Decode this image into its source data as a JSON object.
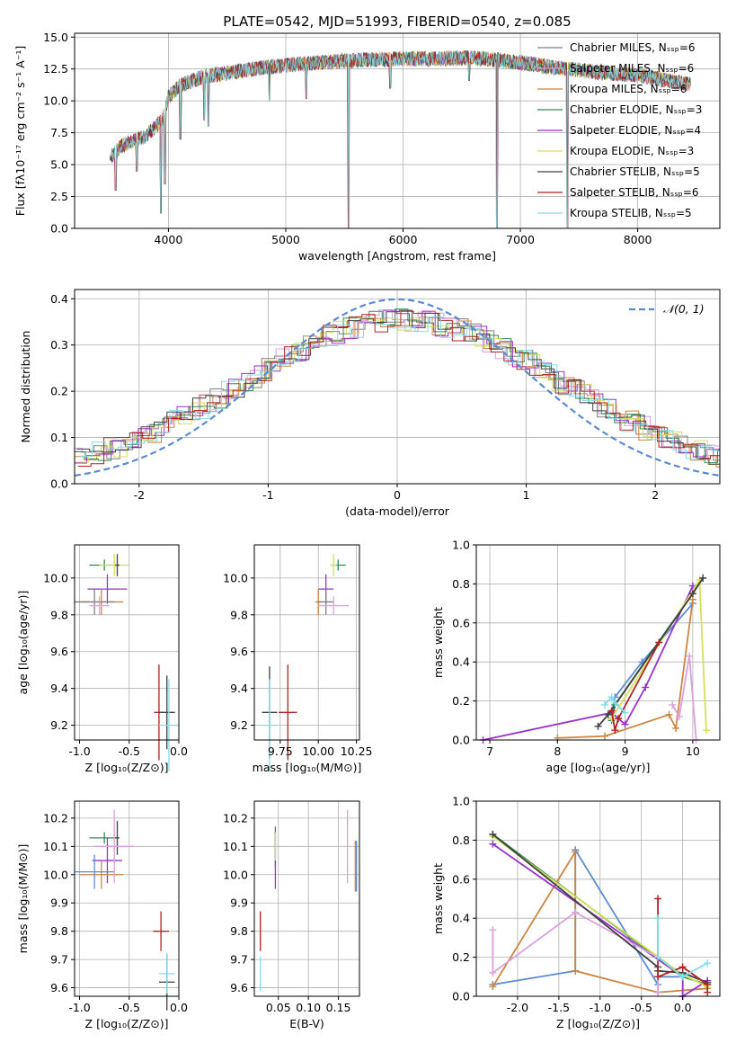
{
  "figure_title": "PLATE=0542, MJD=51993, FIBERID=0540, z=0.085",
  "chart_data": [
    {
      "id": "spectrum",
      "type": "line",
      "title": "PLATE=0542, MJD=51993, FIBERID=0540, z=0.085",
      "xlabel": "wavelength [Angstrom, rest frame]",
      "ylabel": "Flux [fλ10⁻¹⁷ erg cm⁻² s⁻¹ A⁻¹]",
      "xlim": [
        3200,
        8700
      ],
      "ylim": [
        0,
        15.3
      ],
      "xticks": [
        4000,
        5000,
        6000,
        7000,
        8000
      ],
      "yticks": [
        0.0,
        2.5,
        5.0,
        7.5,
        10.0,
        12.5,
        15.0
      ],
      "legend_position": "top-right",
      "series": [
        {
          "name": "Chabrier MILES, N_SSP=6",
          "color": "#808080"
        },
        {
          "name": "Salpeter MILES, N_SSP=6",
          "color": "#dda0dd"
        },
        {
          "name": "Kroupa MILES, N_SSP=6",
          "color": "#cd853f"
        },
        {
          "name": "Chabrier ELODIE, N_SSP=3",
          "color": "#2e8b57"
        },
        {
          "name": "Salpeter ELODIE, N_SSP=4",
          "color": "#9932cc"
        },
        {
          "name": "Kroupa ELODIE, N_SSP=3",
          "color": "#d4e157"
        },
        {
          "name": "Chabrier STELIB, N_SSP=5",
          "color": "#404040"
        },
        {
          "name": "Salpeter STELIB, N_SSP=6",
          "color": "#b22222"
        },
        {
          "name": "Kroupa STELIB, N_SSP=5",
          "color": "#80deea"
        }
      ],
      "continuum": {
        "x": [
          3500,
          3600,
          3800,
          3950,
          4000,
          4100,
          4300,
          4500,
          4800,
          5000,
          5300,
          5600,
          6000,
          6300,
          6600,
          7000,
          7300,
          7600,
          8000,
          8500
        ],
        "y": [
          5.5,
          6.5,
          7.2,
          8.5,
          10.3,
          11.2,
          11.9,
          12.2,
          12.6,
          12.8,
          13.0,
          13.2,
          13.3,
          13.3,
          13.4,
          13.0,
          12.6,
          12.3,
          12.0,
          11.2
        ]
      },
      "absorption_features": [
        {
          "x": 3550,
          "y": 3.0
        },
        {
          "x": 3730,
          "y": 4.5
        },
        {
          "x": 3935,
          "y": 1.2
        },
        {
          "x": 3970,
          "y": 3.5
        },
        {
          "x": 4102,
          "y": 7.0
        },
        {
          "x": 4305,
          "y": 8.5
        },
        {
          "x": 4340,
          "y": 8.0
        },
        {
          "x": 4861,
          "y": 10.0
        },
        {
          "x": 5175,
          "y": 10.2
        },
        {
          "x": 5535,
          "y": 0.0
        },
        {
          "x": 5890,
          "y": 11.0
        },
        {
          "x": 6563,
          "y": 11.6
        },
        {
          "x": 6800,
          "y": 0.0
        },
        {
          "x": 7400,
          "y": 0.0
        }
      ]
    },
    {
      "id": "residual-histogram",
      "type": "histogram",
      "xlabel": "(data-model)/error",
      "ylabel": "Normed distribution",
      "xlim": [
        -2.5,
        2.5
      ],
      "ylim": [
        0,
        0.42
      ],
      "xticks": [
        -2,
        -1,
        0,
        1,
        2
      ],
      "yticks": [
        0.0,
        0.1,
        0.2,
        0.3,
        0.4
      ],
      "legend_position": "top-right",
      "reference_curve": {
        "name": "N(0,1)",
        "label_text": "𝒩(0, 1)",
        "mean": 0,
        "sigma": 1,
        "color": "#5b8bd4"
      },
      "bin_width": 0.1,
      "series_colors": [
        "#808080",
        "#dda0dd",
        "#cd853f",
        "#2e8b57",
        "#9932cc",
        "#d4e157",
        "#404040",
        "#b22222",
        "#80deea"
      ]
    },
    {
      "id": "age-vs-Z",
      "type": "scatter",
      "xlabel": "Z [log₁₀(Z/Z⊙)]",
      "ylabel": "age  [log₁₀(age/yr)]",
      "xlim": [
        -1.05,
        0.0
      ],
      "ylim": [
        9.12,
        10.18
      ],
      "xticks": [
        -1.0,
        -0.5,
        0.0
      ],
      "yticks": [
        9.2,
        9.4,
        9.6,
        9.8,
        10.0
      ],
      "points": [
        {
          "x": -0.75,
          "y": 10.07,
          "xerr": 0.15,
          "yerr": 0.03,
          "color": "#2e8b57"
        },
        {
          "x": -0.65,
          "y": 10.07,
          "xerr": 0.15,
          "yerr": 0.06,
          "color": "#d4e157"
        },
        {
          "x": -0.62,
          "y": 10.07,
          "xerr": 0.02,
          "yerr": 0.06,
          "color": "#404040"
        },
        {
          "x": -0.72,
          "y": 9.94,
          "xerr": 0.2,
          "yerr": 0.08,
          "color": "#9932cc"
        },
        {
          "x": -0.78,
          "y": 9.87,
          "xerr": 0.22,
          "yerr": 0.07,
          "color": "#cd853f"
        },
        {
          "x": -0.85,
          "y": 9.87,
          "xerr": 0.2,
          "yerr": 0.07,
          "color": "#808080"
        },
        {
          "x": -0.8,
          "y": 9.85,
          "xerr": 0.1,
          "yerr": 0.05,
          "color": "#dda0dd"
        },
        {
          "x": -0.2,
          "y": 9.27,
          "xerr": 0.05,
          "yerr": 0.26,
          "color": "#b22222"
        },
        {
          "x": -0.12,
          "y": 9.27,
          "xerr": 0.08,
          "yerr": 0.2,
          "color": "#404040"
        },
        {
          "x": -0.1,
          "y": 9.2,
          "xerr": 0.1,
          "yerr": 0.25,
          "color": "#80deea"
        }
      ]
    },
    {
      "id": "age-vs-mass",
      "type": "scatter",
      "xlabel": "mass [log₁₀(M/M⊙)]",
      "ylabel": "",
      "xlim": [
        9.58,
        10.27
      ],
      "ylim": [
        9.12,
        10.18
      ],
      "xticks": [
        9.75,
        10.0,
        10.25
      ],
      "yticks": [
        9.2,
        9.4,
        9.6,
        9.8,
        10.0
      ],
      "points": [
        {
          "x": 10.13,
          "y": 10.07,
          "xerr": 0.05,
          "yerr": 0.03,
          "color": "#2e8b57"
        },
        {
          "x": 10.1,
          "y": 10.07,
          "xerr": 0.02,
          "yerr": 0.06,
          "color": "#d4e157"
        },
        {
          "x": 10.05,
          "y": 9.94,
          "xerr": 0.05,
          "yerr": 0.08,
          "color": "#9932cc"
        },
        {
          "x": 10.0,
          "y": 9.87,
          "xerr": 0.02,
          "yerr": 0.07,
          "color": "#cd853f"
        },
        {
          "x": 10.05,
          "y": 9.87,
          "xerr": 0.05,
          "yerr": 0.07,
          "color": "#808080"
        },
        {
          "x": 10.1,
          "y": 9.85,
          "xerr": 0.1,
          "yerr": 0.05,
          "color": "#dda0dd"
        },
        {
          "x": 9.8,
          "y": 9.27,
          "xerr": 0.06,
          "yerr": 0.26,
          "color": "#b22222"
        },
        {
          "x": 9.68,
          "y": 9.27,
          "xerr": 0.05,
          "yerr": 0.25,
          "color": "#404040"
        },
        {
          "x": 9.68,
          "y": 9.2,
          "xerr": 0.05,
          "yerr": 0.25,
          "color": "#80deea"
        }
      ]
    },
    {
      "id": "massweight-vs-age",
      "type": "line",
      "xlabel": "age  [log₁₀(age/yr)]",
      "ylabel": "mass weight",
      "xlim": [
        6.8,
        10.4
      ],
      "ylim": [
        0,
        1.0
      ],
      "xticks": [
        7,
        8,
        9,
        10
      ],
      "yticks": [
        0.0,
        0.2,
        0.4,
        0.6,
        0.8,
        1.0
      ],
      "grid": true,
      "series": [
        {
          "color": "#5b8bd4",
          "x": [
            8.8,
            8.85,
            9.25,
            10.0
          ],
          "y": [
            0.13,
            0.22,
            0.4,
            0.7
          ]
        },
        {
          "color": "#cd853f",
          "x": [
            8.0,
            8.7,
            9.65,
            9.75,
            10.0
          ],
          "y": [
            0.01,
            0.02,
            0.13,
            0.06,
            0.72
          ]
        },
        {
          "color": "#2e8b57",
          "x": [
            8.8,
            8.85,
            10.15
          ],
          "y": [
            0.1,
            0.18,
            0.83
          ]
        },
        {
          "color": "#9932cc",
          "x": [
            6.9,
            8.8,
            9.0,
            9.3,
            10.0
          ],
          "y": [
            0.0,
            0.14,
            0.08,
            0.27,
            0.79
          ]
        },
        {
          "color": "#dda0dd",
          "x": [
            9.7,
            9.8,
            9.95,
            10.05
          ],
          "y": [
            0.18,
            0.12,
            0.43,
            0.0
          ]
        },
        {
          "color": "#d4e157",
          "x": [
            8.8,
            10.1,
            10.2
          ],
          "y": [
            0.11,
            0.82,
            0.05
          ]
        },
        {
          "color": "#404040",
          "x": [
            8.6,
            8.75,
            10.0,
            10.15
          ],
          "y": [
            0.07,
            0.13,
            0.75,
            0.83
          ]
        },
        {
          "color": "#b22222",
          "x": [
            8.8,
            8.85,
            8.9,
            9.5
          ],
          "y": [
            0.15,
            0.05,
            0.11,
            0.5
          ]
        },
        {
          "color": "#80deea",
          "x": [
            8.7,
            8.8,
            8.85,
            9.0
          ],
          "y": [
            0.18,
            0.22,
            0.19,
            0.14
          ]
        }
      ]
    },
    {
      "id": "mass-vs-Z",
      "type": "scatter",
      "xlabel": "Z [log₁₀(Z/Z⊙)]",
      "ylabel": "mass [log₁₀(M/M⊙)]",
      "xlim": [
        -1.05,
        0.0
      ],
      "ylim": [
        9.57,
        10.26
      ],
      "xticks": [
        -1.0,
        -0.5,
        0.0
      ],
      "yticks": [
        9.6,
        9.7,
        9.8,
        9.9,
        10.0,
        10.1,
        10.2
      ],
      "points": [
        {
          "x": -0.75,
          "y": 10.13,
          "xerr": 0.15,
          "yerr": 0.02,
          "color": "#2e8b57"
        },
        {
          "x": -0.65,
          "y": 10.1,
          "xerr": 0.15,
          "yerr": 0.06,
          "color": "#d4e157"
        },
        {
          "x": -0.62,
          "y": 10.13,
          "xerr": 0.02,
          "yerr": 0.06,
          "color": "#404040"
        },
        {
          "x": -0.72,
          "y": 10.05,
          "xerr": 0.15,
          "yerr": 0.08,
          "color": "#9932cc"
        },
        {
          "x": -0.78,
          "y": 10.0,
          "xerr": 0.22,
          "yerr": 0.05,
          "color": "#cd853f"
        },
        {
          "x": -0.85,
          "y": 10.01,
          "xerr": 0.2,
          "yerr": 0.06,
          "color": "#5b8bd4"
        },
        {
          "x": -0.65,
          "y": 10.1,
          "xerr": 0.2,
          "yerr": 0.13,
          "color": "#dda0dd"
        },
        {
          "x": -0.18,
          "y": 9.8,
          "xerr": 0.08,
          "yerr": 0.07,
          "color": "#b22222"
        },
        {
          "x": -0.12,
          "y": 9.62,
          "xerr": 0.08,
          "yerr": 0.1,
          "color": "#404040"
        },
        {
          "x": -0.12,
          "y": 9.65,
          "xerr": 0.08,
          "yerr": 0.07,
          "color": "#80deea"
        }
      ]
    },
    {
      "id": "mass-vs-ebv",
      "type": "scatter",
      "xlabel": "E(B-V)",
      "ylabel": "",
      "xlim": [
        0.01,
        0.185
      ],
      "ylim": [
        9.57,
        10.26
      ],
      "xticks": [
        0.05,
        0.1,
        0.15
      ],
      "xtick_labels": [
        "0.05",
        "0.10",
        "0.15"
      ],
      "yticks": [
        9.6,
        9.7,
        9.8,
        9.9,
        10.0,
        10.1,
        10.2
      ],
      "points": [
        {
          "x": 0.045,
          "y": 10.1,
          "yerr": 0.07,
          "color": "#2e8b57"
        },
        {
          "x": 0.045,
          "y": 10.05,
          "yerr": 0.1,
          "color": "#9932cc"
        },
        {
          "x": 0.045,
          "y": 10.1,
          "yerr": 0.05,
          "color": "#d4e157"
        },
        {
          "x": 0.165,
          "y": 10.1,
          "yerr": 0.13,
          "color": "#dda0dd"
        },
        {
          "x": 0.178,
          "y": 10.03,
          "yerr": 0.09,
          "color": "#cd853f"
        },
        {
          "x": 0.18,
          "y": 10.03,
          "yerr": 0.09,
          "color": "#5b8bd4"
        },
        {
          "x": 0.02,
          "y": 9.8,
          "yerr": 0.07,
          "color": "#b22222"
        },
        {
          "x": 0.02,
          "y": 9.65,
          "yerr": 0.06,
          "color": "#80deea"
        }
      ]
    },
    {
      "id": "massweight-vs-Z",
      "type": "line",
      "xlabel": "Z [log₁₀(Z/Z⊙)]",
      "ylabel": "mass weight",
      "xlim": [
        -2.5,
        0.45
      ],
      "ylim": [
        0,
        1.0
      ],
      "xticks": [
        -2.0,
        -1.5,
        -1.0,
        -0.5,
        0.0
      ],
      "yticks": [
        0.0,
        0.2,
        0.4,
        0.6,
        0.8,
        1.0
      ],
      "grid": true,
      "series": [
        {
          "color": "#5b8bd4",
          "x": [
            -2.3,
            -1.3,
            -1.3,
            -0.3,
            -0.3,
            0.0
          ],
          "y": [
            0.06,
            0.13,
            0.75,
            0.06,
            0.1,
            0.1
          ]
        },
        {
          "color": "#cd853f",
          "x": [
            -2.3,
            -1.3,
            -1.3,
            -0.3,
            0.3
          ],
          "y": [
            0.05,
            0.74,
            0.13,
            0.02,
            0.04
          ]
        },
        {
          "color": "#2e8b57",
          "x": [
            -2.3,
            0.0,
            0.3
          ],
          "y": [
            0.83,
            0.1,
            0.06
          ]
        },
        {
          "color": "#9932cc",
          "x": [
            -2.3,
            0.0,
            0.0,
            0.3
          ],
          "y": [
            0.78,
            0.1,
            0.0,
            0.08
          ]
        },
        {
          "color": "#dda0dd",
          "x": [
            -2.3,
            -2.3,
            -1.3,
            -0.3,
            -0.3
          ],
          "y": [
            0.34,
            0.12,
            0.43,
            0.2,
            0.02
          ]
        },
        {
          "color": "#d4e157",
          "x": [
            -2.3,
            0.0,
            0.3
          ],
          "y": [
            0.82,
            0.11,
            0.05
          ]
        },
        {
          "color": "#404040",
          "x": [
            -2.3,
            -0.3,
            -0.3,
            0.0,
            0.3
          ],
          "y": [
            0.83,
            0.15,
            0.13,
            0.12,
            0.07
          ]
        },
        {
          "color": "#b22222",
          "x": [
            -0.3,
            -0.3,
            0.0,
            0.3,
            0.3
          ],
          "y": [
            0.5,
            0.1,
            0.15,
            0.06,
            0.02
          ]
        },
        {
          "color": "#80deea",
          "x": [
            -0.3,
            -0.3,
            0.0,
            0.3
          ],
          "y": [
            0.4,
            0.2,
            0.1,
            0.17
          ]
        }
      ]
    }
  ]
}
